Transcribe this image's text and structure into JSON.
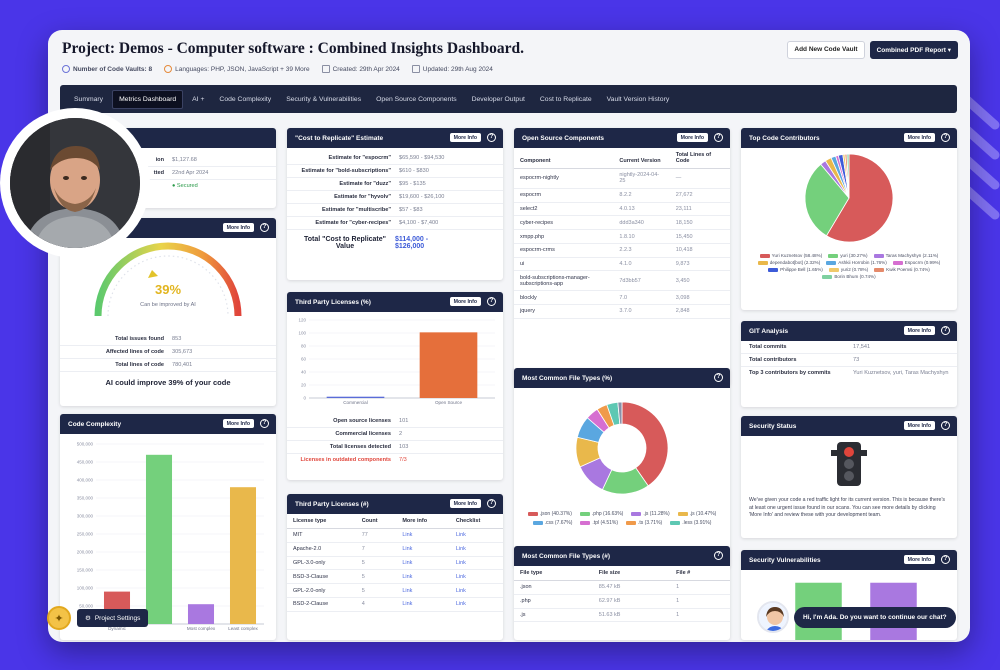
{
  "header": {
    "title": "Project:  Demos - Computer software  :  Combined Insights Dashboard.",
    "meta": {
      "vaults": "Number of Code Vaults: 8",
      "languages": "Languages: PHP, JSON, JavaScript + 39 More",
      "created": "Created: 29th Apr 2024",
      "updated": "Updated: 29th Aug 2024"
    },
    "buttons": {
      "add_vault": "Add New Code Vault",
      "pdf_report": "Combined PDF Report"
    }
  },
  "nav": {
    "tabs": [
      "Summary",
      "Metrics Dashboard",
      "AI +",
      "Code Complexity",
      "Security & Vulnerabilities",
      "Open Source Components",
      "Developer Output",
      "Cost to Replicate",
      "Vault Version History"
    ]
  },
  "common": {
    "more_info": "More Info",
    "help": "?"
  },
  "top_left": {
    "rows": [
      {
        "k": "ion",
        "v": "$1,127.68"
      },
      {
        "k": "tted",
        "v": "22nd Apr 2024"
      },
      {
        "k": "",
        "v": "● Secured"
      }
    ]
  },
  "ai_card": {
    "percent": "39%",
    "caption": "Can be improved by AI",
    "rows": [
      {
        "k": "Total issues found",
        "v": "853"
      },
      {
        "k": "Affected lines of code",
        "v": "305,673"
      },
      {
        "k": "Total lines of code",
        "v": "780,401"
      }
    ],
    "summary": "AI could improve 39% of your code"
  },
  "cost": {
    "title": "\"Cost to Replicate\" Estimate",
    "rows": [
      {
        "k": "Estimate for \"espocrm\"",
        "v": "$65,590 - $94,530"
      },
      {
        "k": "Estimate for \"bold-subscriptions\"",
        "v": "$610 - $830"
      },
      {
        "k": "Estimate for \"duzz\"",
        "v": "$95 - $135"
      },
      {
        "k": "Estimate for \"hyvolv\"",
        "v": "$19,600 - $26,100"
      },
      {
        "k": "Estimate for \"multiscribe\"",
        "v": "$57 - $83"
      },
      {
        "k": "Estimate for \"cyber-recipes\"",
        "v": "$4,100 - $7,400"
      }
    ],
    "total_label": "Total \"Cost to Replicate\" Value",
    "total_value_a": "$114,000 -",
    "total_value_b": "$126,000"
  },
  "licenses_pct": {
    "title": "Third Party Licenses (%)",
    "rows": [
      {
        "k": "Open source licenses",
        "v": "101"
      },
      {
        "k": "Commercial licenses",
        "v": "2"
      },
      {
        "k": "Total licenses detected",
        "v": "103"
      }
    ],
    "warning": "Licenses in outdated components",
    "warning_value": "7/3"
  },
  "licenses_num": {
    "title": "Third Party Licenses (#)",
    "columns": [
      "License type",
      "Count",
      "More info",
      "Checklist"
    ],
    "rows": [
      [
        "MIT",
        "77",
        "Link",
        "Link"
      ],
      [
        "Apache-2.0",
        "7",
        "Link",
        "Link"
      ],
      [
        "GPL-3.0-only",
        "5",
        "Link",
        "Link"
      ],
      [
        "BSD-3-Clause",
        "5",
        "Link",
        "Link"
      ],
      [
        "GPL-2.0-only",
        "5",
        "Link",
        "Link"
      ],
      [
        "BSD-2-Clause",
        "4",
        "Link",
        "Link"
      ]
    ]
  },
  "complexity": {
    "title": "Code Complexity"
  },
  "open_source": {
    "title": "Open Source Components",
    "columns": [
      "Component",
      "Current Version",
      "Total Lines of Code"
    ],
    "rows": [
      [
        "espocrm-nightly",
        "nightly-2024-04-25",
        "—"
      ],
      [
        "espocrm",
        "8.2.2",
        "27,672"
      ],
      [
        "select2",
        "4.0.13",
        "23,111"
      ],
      [
        "cyber-recipes",
        "ddd3a340",
        "18,150"
      ],
      [
        "xmpp.php",
        "1.8.10",
        "15,450"
      ],
      [
        "espocrm-crms",
        "2.2.3",
        "10,418"
      ],
      [
        "ui",
        "4.1.0",
        "9,873"
      ],
      [
        "bold-subscriptions-manager-subscriptions-app",
        "7d3bb57",
        "3,450"
      ],
      [
        "blockly",
        "7.0",
        "3,098"
      ],
      [
        "jquery",
        "3.7.0",
        "2,848"
      ]
    ]
  },
  "filetypes_pct": {
    "title": "Most Common File Types (%)",
    "legend": [
      ".json (40.37%)",
      ".php (16.63%)",
      ".js (11.28%)",
      ".js (10.47%)",
      ".css (7.67%)",
      ".tpl (4.51%)",
      ".ts (3.71%)",
      ".less (3.91%)"
    ]
  },
  "filetypes_num": {
    "title": "Most Common File Types (#)",
    "columns": [
      "File type",
      "File size",
      "File #"
    ],
    "rows": [
      [
        ".json",
        "85.47 kB",
        "1"
      ],
      [
        ".php",
        "62.97 kB",
        "1"
      ],
      [
        ".js",
        "51.63 kB",
        "1"
      ]
    ]
  },
  "contributors": {
    "title": "Top Code Contributors",
    "legend": [
      "Yuri Kuznetsov (58.48%)",
      "yuri (30.27%)",
      "Taras Machyshyn (2.11%)",
      "dependabot[bot] (2.32%)",
      "Ashkii Horrobin (1.76%)",
      "Espocrm (0.99%)",
      "Philippe Bell (1.65%)",
      "yuri2 (0.78%)",
      "Kwik Poemsi (0.74%)",
      "Borin Bhum (0.74%)"
    ]
  },
  "git": {
    "title": "GIT Analysis",
    "rows": [
      {
        "k": "Total commits",
        "v": "17,541"
      },
      {
        "k": "Total contributors",
        "v": "73"
      },
      {
        "k": "Top 3 contributors by commits",
        "v": "Yuri Kuznetsov, yuri, Taras Machyshyn"
      }
    ]
  },
  "security_status": {
    "title": "Security Status",
    "text": "We've given your code a red traffic light for its current version. This is because there's at least one urgent issue found in our scans. You can see more details by clicking 'More Info' and review these with your development team."
  },
  "security_vuln": {
    "title": "Security Vulnerabilities"
  },
  "widgets": {
    "settings": "Project Settings",
    "chat": "Hi, I'm Ada. Do you want to continue our chat?"
  },
  "chart_data": [
    {
      "type": "bar",
      "categories": [
        "Commercial",
        "Open Source"
      ],
      "values": [
        2,
        101
      ],
      "ylim": [
        0,
        120
      ],
      "yticks": [
        "0",
        "20",
        "40",
        "60",
        "80",
        "100",
        "120"
      ],
      "colors": [
        "#5a6cd8",
        "#e56f3b"
      ]
    },
    {
      "type": "bar",
      "categories": [
        "Dynamic",
        "",
        "Most complex",
        "Least complex"
      ],
      "values": [
        90000,
        470000,
        55000,
        380000
      ],
      "ylim": [
        0,
        500000
      ],
      "yticks": [
        "0",
        "50,000",
        "100,000",
        "150,000",
        "200,000",
        "250,000",
        "300,000",
        "350,000",
        "400,000",
        "450,000",
        "500,000"
      ],
      "colors": [
        "#d75a5a",
        "#74d07c",
        "#a978e0",
        "#e9b84b"
      ]
    },
    {
      "type": "pie",
      "labels": [
        ".json",
        ".php",
        ".js",
        ".js",
        ".css",
        ".tpl",
        ".ts",
        ".less",
        "other"
      ],
      "values": [
        40.37,
        16.63,
        11.28,
        10.47,
        7.67,
        4.51,
        3.71,
        3.91,
        1.45
      ],
      "colors": [
        "#d75a5a",
        "#74d07c",
        "#a978e0",
        "#e9b84b",
        "#5aa7e0",
        "#d66fd1",
        "#f09a4a",
        "#5ec8b3",
        "#8a90a8"
      ]
    },
    {
      "type": "pie",
      "labels": [
        "Yuri Kuznetsov",
        "yuri",
        "Taras Machyshyn",
        "dependabot[bot]",
        "Ashkii Horrobin",
        "Espocrm",
        "Philippe Bell",
        "yuri2",
        "Kwik Poemsi",
        "Borin Bhum"
      ],
      "values": [
        58.48,
        30.27,
        2.11,
        2.32,
        1.76,
        0.99,
        1.65,
        0.78,
        0.74,
        0.74
      ],
      "colors": [
        "#d75a5a",
        "#74d07c",
        "#a978e0",
        "#e9b84b",
        "#5aa7e0",
        "#d66fd1",
        "#3d5bd8",
        "#f0c96a",
        "#e58a6b",
        "#7fd0a0"
      ]
    },
    {
      "type": "bar",
      "categories": [
        "",
        ""
      ],
      "values": [
        30,
        30
      ],
      "colors": [
        "#74d07c",
        "#a978e0"
      ]
    }
  ]
}
